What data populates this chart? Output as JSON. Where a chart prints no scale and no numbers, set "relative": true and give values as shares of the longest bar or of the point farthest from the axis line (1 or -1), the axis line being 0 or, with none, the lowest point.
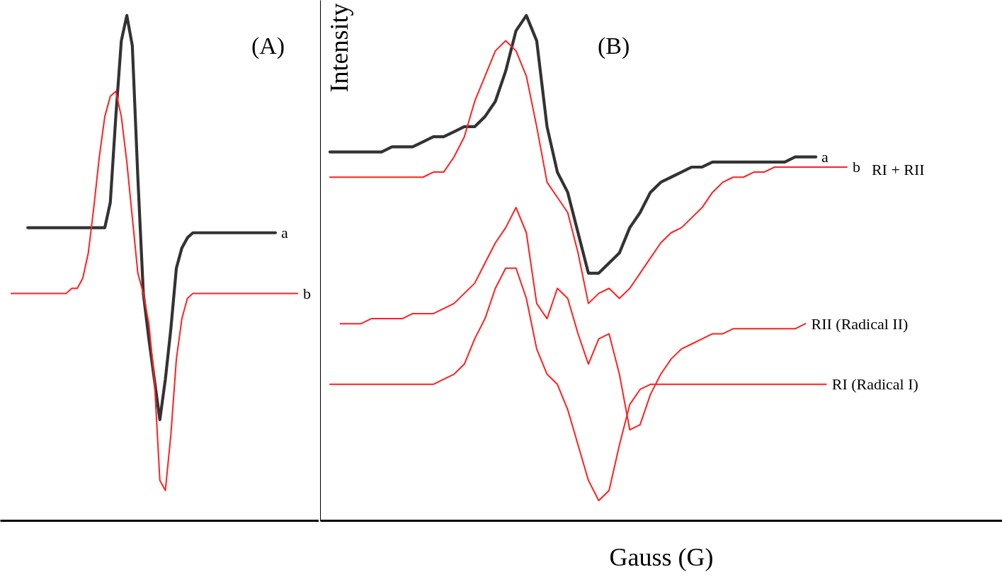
{
  "chart_data": [
    {
      "type": "line",
      "title": "(A)",
      "relative": true,
      "categories": [
        null,
        null,
        null,
        null,
        null,
        null,
        null,
        null,
        null,
        null,
        null,
        null,
        null,
        null,
        null,
        null,
        null,
        null,
        null,
        null,
        null,
        null,
        null,
        null,
        null,
        null,
        null,
        null,
        null,
        null,
        null,
        null,
        null,
        null,
        null,
        null,
        null,
        null,
        null,
        null,
        null,
        null,
        null,
        null,
        null,
        null,
        null,
        null,
        null,
        null,
        null,
        null,
        null,
        null
      ],
      "series": [
        {
          "name": "a",
          "color": "#333333",
          "values": [
            null,
            null,
            null,
            null,
            0.58,
            0.58,
            0.58,
            0.58,
            0.58,
            0.58,
            0.58,
            0.58,
            0.58,
            0.58,
            0.58,
            0.58,
            0.58,
            0.58,
            0.58,
            0.63,
            0.8,
            0.95,
            1.0,
            0.94,
            0.68,
            0.45,
            0.36,
            0.28,
            0.2,
            0.28,
            0.38,
            0.5,
            0.54,
            0.56,
            0.57,
            0.57,
            0.57,
            0.57,
            0.57,
            0.57,
            0.57,
            0.57,
            0.57,
            0.57,
            0.57,
            0.57,
            0.57,
            0.57,
            0.57,
            0.57,
            null,
            null,
            null,
            null
          ]
        },
        {
          "name": "b",
          "color": "#ff2020",
          "values": [
            null,
            0.45,
            0.45,
            0.45,
            0.45,
            0.45,
            0.45,
            0.45,
            0.45,
            0.45,
            0.45,
            0.45,
            0.46,
            0.46,
            0.48,
            0.53,
            0.62,
            0.72,
            0.8,
            0.84,
            0.85,
            0.8,
            0.71,
            0.6,
            0.49,
            0.45,
            0.39,
            0.28,
            0.08,
            0.06,
            0.17,
            0.32,
            0.4,
            0.44,
            0.45,
            0.45,
            0.45,
            0.45,
            0.45,
            0.45,
            0.45,
            0.45,
            0.45,
            0.45,
            0.45,
            0.45,
            0.45,
            0.45,
            0.45,
            0.45,
            0.45,
            0.45,
            0.45,
            0.45
          ]
        }
      ]
    },
    {
      "type": "line",
      "title": "(B)",
      "relative": true,
      "xlabel": "Gauss (G)",
      "ylabel": "Intensity",
      "annotations": [
        "RI + RII"
      ],
      "categories": [
        null,
        null,
        null,
        null,
        null,
        null,
        null,
        null,
        null,
        null,
        null,
        null,
        null,
        null,
        null,
        null,
        null,
        null,
        null,
        null,
        null,
        null,
        null,
        null,
        null,
        null,
        null,
        null,
        null,
        null,
        null,
        null,
        null,
        null,
        null,
        null,
        null,
        null,
        null,
        null,
        null,
        null,
        null,
        null,
        null,
        null,
        null,
        null,
        null,
        null,
        null
      ],
      "series": [
        {
          "name": "a",
          "color": "#333333",
          "values": [
            0.73,
            0.73,
            0.73,
            0.73,
            0.73,
            0.73,
            0.74,
            0.74,
            0.74,
            0.75,
            0.76,
            0.76,
            0.77,
            0.78,
            0.78,
            0.8,
            0.83,
            0.89,
            0.97,
            1.0,
            0.95,
            0.78,
            0.69,
            0.65,
            0.57,
            0.49,
            0.49,
            0.51,
            0.53,
            0.58,
            0.61,
            0.65,
            0.67,
            0.68,
            0.69,
            0.7,
            0.7,
            0.71,
            0.71,
            0.71,
            0.71,
            0.71,
            0.71,
            0.71,
            0.71,
            0.72,
            0.72,
            0.72,
            null,
            null,
            null
          ]
        },
        {
          "name": "b",
          "color": "#ff2020",
          "values": [
            0.68,
            0.68,
            0.68,
            0.68,
            0.68,
            0.68,
            0.68,
            0.68,
            0.68,
            0.68,
            0.69,
            0.69,
            0.72,
            0.76,
            0.83,
            0.88,
            0.93,
            0.95,
            0.93,
            0.88,
            0.78,
            0.67,
            0.64,
            0.61,
            0.53,
            0.43,
            0.45,
            0.46,
            0.44,
            0.46,
            0.49,
            0.52,
            0.55,
            0.57,
            0.58,
            0.6,
            0.62,
            0.65,
            0.67,
            0.68,
            0.68,
            0.69,
            0.69,
            0.7,
            0.7,
            0.7,
            0.7,
            0.7,
            0.7,
            0.7,
            0.7
          ]
        },
        {
          "name": "RII (Radical II)",
          "color": "#ff2020",
          "values": [
            null,
            0.39,
            0.39,
            0.39,
            0.4,
            0.4,
            0.4,
            0.4,
            0.41,
            0.41,
            0.41,
            0.42,
            0.43,
            0.45,
            0.47,
            0.51,
            0.55,
            0.58,
            0.62,
            0.57,
            0.43,
            0.4,
            0.46,
            0.44,
            0.37,
            0.31,
            0.36,
            0.37,
            0.29,
            0.18,
            0.19,
            0.25,
            0.29,
            0.32,
            0.34,
            0.35,
            0.36,
            0.37,
            0.37,
            0.38,
            0.38,
            0.38,
            0.38,
            0.38,
            0.38,
            0.38,
            0.39,
            null,
            null,
            null,
            null
          ]
        },
        {
          "name": "RI (Radical I)",
          "color": "#ff2020",
          "values": [
            0.27,
            0.27,
            0.27,
            0.27,
            0.27,
            0.27,
            0.27,
            0.27,
            0.27,
            0.27,
            0.27,
            0.28,
            0.29,
            0.31,
            0.36,
            0.4,
            0.46,
            0.5,
            0.5,
            0.44,
            0.34,
            0.29,
            0.27,
            0.22,
            0.15,
            0.08,
            0.04,
            0.06,
            0.15,
            0.23,
            0.26,
            0.27,
            0.27,
            0.27,
            0.27,
            0.27,
            0.27,
            0.27,
            0.27,
            0.27,
            0.27,
            0.27,
            0.27,
            0.27,
            0.27,
            0.27,
            0.27,
            0.27,
            0.27,
            null,
            null
          ]
        }
      ]
    }
  ]
}
